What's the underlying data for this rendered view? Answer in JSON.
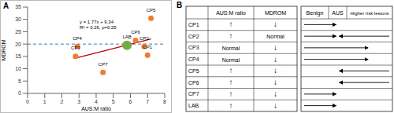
{
  "chart_data": {
    "panel": "A",
    "type": "scatter",
    "x_label": "AUS:M ratio",
    "y_label": "MDROM",
    "labels": [
      "CP1",
      "CP2",
      "CP3",
      "CP4",
      "CP5",
      "CP6",
      "CP7",
      "LAB"
    ],
    "x": [
      7.0,
      6.8,
      2.8,
      2.9,
      7.2,
      6.3,
      4.4,
      5.8
    ],
    "values": [
      15.5,
      19,
      15,
      19,
      30.5,
      21.5,
      8.5,
      19.5
    ],
    "color": "#ED7D31",
    "colors": [
      "#ED7D31",
      "#ED7D31",
      "#ED7D31",
      "#ED7D31",
      "#ED7D31",
      "#ED7D31",
      "#ED7D31",
      "#70AD47"
    ],
    "data_labels": true,
    "xlim": [
      0,
      8
    ],
    "xticks": [
      0,
      1,
      2,
      3,
      4,
      5,
      6,
      7,
      8
    ],
    "ylim": [
      0,
      35
    ],
    "yticks": [
      0,
      5,
      10,
      15,
      20,
      25,
      30,
      35
    ],
    "grid": false,
    "annotations": [
      "y = 1.77x + 9.34",
      "R² = 0.26, p=0.25"
    ],
    "trendline": {
      "x": [
        2.7,
        7.2
      ],
      "values": [
        14.12,
        22.08
      ],
      "color": "#C00000"
    },
    "reference_line": {
      "value": 20,
      "color": "#4472C4",
      "line_style": "dashed"
    }
  },
  "table": {
    "panel": "B",
    "headers": [
      "AUS:M ratio",
      "MDROM"
    ],
    "outcome_headers": [
      "Benign",
      "AUS",
      "Higher risk lesions"
    ],
    "rows": [
      {
        "name": "CP1",
        "ratio": "↑",
        "mdrom": "↓",
        "arrows": [
          {
            "from": "Benign",
            "to": "AUS"
          }
        ]
      },
      {
        "name": "CP2",
        "ratio": "↑",
        "mdrom": "Normal",
        "arrows": [
          {
            "from": "Benign",
            "to": "AUS"
          },
          {
            "from": "Higher risk lesions",
            "to": "AUS"
          }
        ]
      },
      {
        "name": "CP3",
        "ratio": "Normal",
        "mdrom": "↓",
        "arrows": [
          {
            "from": "Benign",
            "to": "Higher risk lesions"
          }
        ]
      },
      {
        "name": "CP4",
        "ratio": "Normal",
        "mdrom": "↓",
        "arrows": [
          {
            "from": "Benign",
            "to": "Higher risk lesions"
          }
        ]
      },
      {
        "name": "CP5",
        "ratio": "↑",
        "mdrom": "↓",
        "arrows": [
          {
            "from": "Higher risk lesions",
            "to": "AUS"
          }
        ]
      },
      {
        "name": "CP6",
        "ratio": "↑",
        "mdrom": "↓",
        "arrows": [
          {
            "from": "Higher risk lesions",
            "to": "AUS"
          }
        ]
      },
      {
        "name": "CP7",
        "ratio": "↑",
        "mdrom": "↓",
        "arrows": [
          {
            "from": "Benign",
            "to": "AUS"
          }
        ]
      },
      {
        "name": "LAB",
        "ratio": "↑",
        "mdrom": "↓",
        "arrows": [
          {
            "from": "Benign",
            "to": "AUS"
          }
        ]
      }
    ]
  }
}
